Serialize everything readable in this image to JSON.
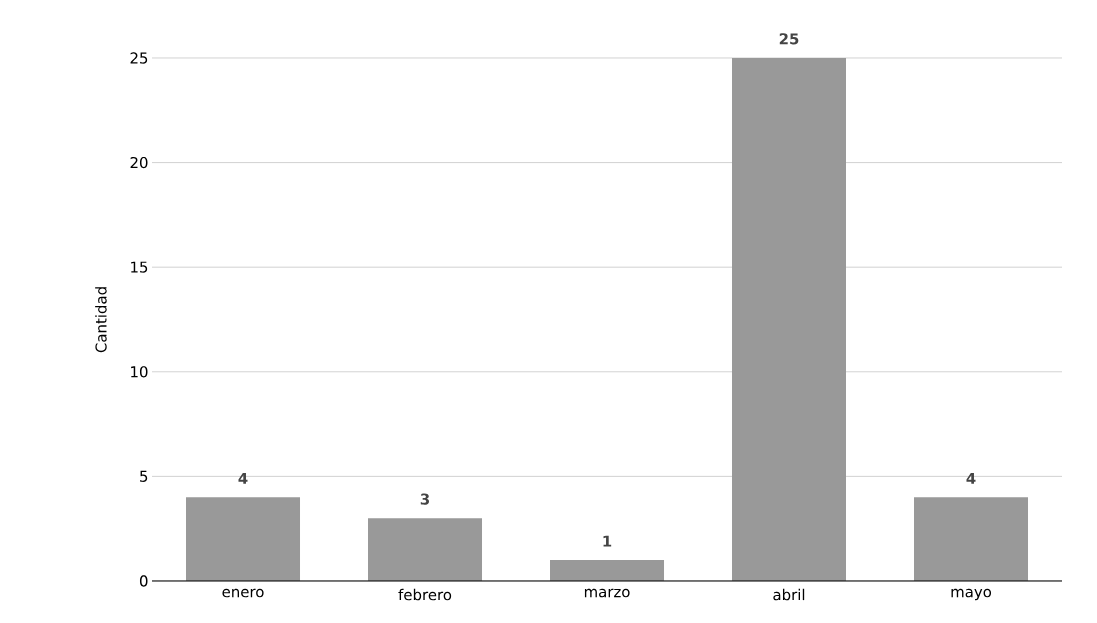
{
  "chart_data": {
    "type": "bar",
    "ylabel": "Cantidad",
    "categories": [
      "enero",
      "febrero",
      "marzo",
      "abril",
      "mayo"
    ],
    "values": [
      4,
      3,
      1,
      25,
      4
    ],
    "color": "#999999",
    "ylim": [
      0,
      25
    ],
    "yticks": [
      0,
      5,
      10,
      15,
      20,
      25
    ],
    "grid": "y",
    "data_labels": true
  }
}
